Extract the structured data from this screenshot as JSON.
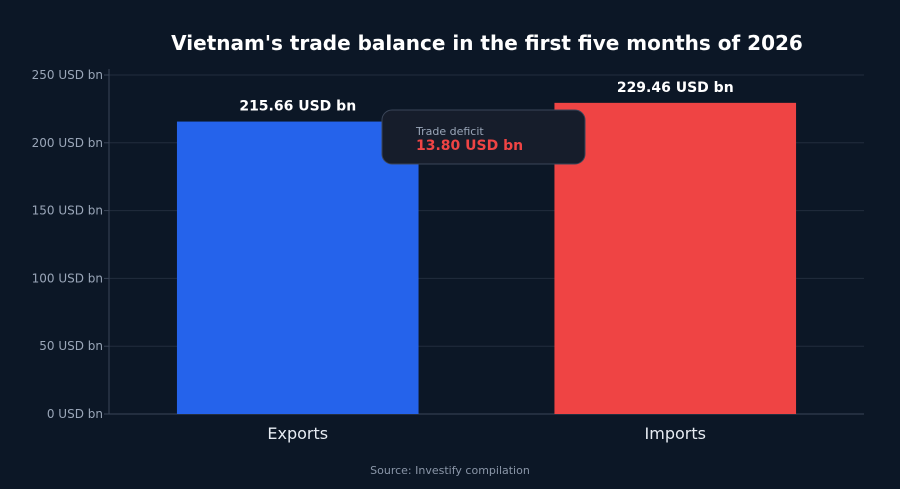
{
  "chart_data": {
    "type": "bar",
    "title": "Vietnam's trade balance in the first five months of 2026",
    "categories": [
      "Exports",
      "Imports"
    ],
    "values": [
      215.66,
      229.46
    ],
    "value_labels": [
      "215.66 USD bn",
      "229.46 USD bn"
    ],
    "colors": [
      "#2563eb",
      "#ef4444"
    ],
    "ylim": [
      0,
      250
    ],
    "yticks": [
      0,
      50,
      100,
      150,
      200,
      250
    ],
    "ytick_labels": [
      "0 USD bn",
      "50 USD bn",
      "100 USD bn",
      "150 USD bn",
      "200 USD bn",
      "250 USD bn"
    ],
    "grid": true,
    "annotation": {
      "label": "Trade deficit",
      "value": "13.80 USD bn",
      "value_color": "#ef4444"
    },
    "source": "Source: Investify compilation"
  }
}
